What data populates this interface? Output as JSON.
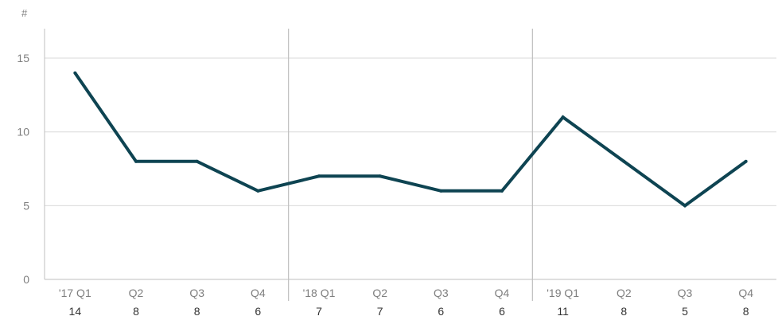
{
  "chart_data": {
    "type": "line",
    "title": "",
    "ylabel": "#",
    "xlabel": "",
    "ylim": [
      0,
      17
    ],
    "yticks": [
      0,
      5,
      10,
      15
    ],
    "categories": [
      "'17 Q1",
      "Q2",
      "Q3",
      "Q4",
      "'18 Q1",
      "Q2",
      "Q3",
      "Q4",
      "'19 Q1",
      "Q2",
      "Q3",
      "Q4"
    ],
    "values": [
      14,
      8,
      8,
      6,
      7,
      7,
      6,
      6,
      11,
      8,
      5,
      8
    ],
    "data_labels": [
      "14",
      "8",
      "8",
      "6",
      "7",
      "7",
      "6",
      "6",
      "11",
      "8",
      "5",
      "8"
    ],
    "year_separators_after": [
      3,
      7
    ],
    "grid": true,
    "legend": "none",
    "colors": {
      "line": "#0e4452"
    }
  }
}
